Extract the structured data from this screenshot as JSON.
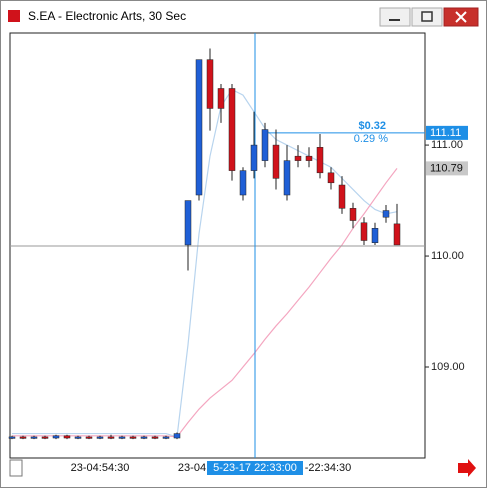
{
  "window": {
    "title": "S.EA - Electronic Arts, 30 Sec"
  },
  "chart_data": {
    "type": "candlestick",
    "ohlc": [
      [
        108.36,
        108.38,
        108.35,
        108.37
      ],
      [
        108.37,
        108.38,
        108.35,
        108.36
      ],
      [
        108.36,
        108.38,
        108.35,
        108.37
      ],
      [
        108.37,
        108.38,
        108.35,
        108.36
      ],
      [
        108.36,
        108.39,
        108.35,
        108.38
      ],
      [
        108.38,
        108.39,
        108.35,
        108.36
      ],
      [
        108.36,
        108.38,
        108.35,
        108.37
      ],
      [
        108.37,
        108.38,
        108.35,
        108.36
      ],
      [
        108.36,
        108.38,
        108.35,
        108.37
      ],
      [
        108.37,
        108.39,
        108.35,
        108.36
      ],
      [
        108.36,
        108.38,
        108.35,
        108.37
      ],
      [
        108.37,
        108.38,
        108.35,
        108.36
      ],
      [
        108.36,
        108.38,
        108.35,
        108.37
      ],
      [
        108.37,
        108.38,
        108.35,
        108.36
      ],
      [
        108.36,
        108.38,
        108.35,
        108.37
      ],
      [
        108.36,
        108.41,
        108.35,
        108.4
      ],
      [
        110.1,
        110.5,
        109.87,
        110.5
      ],
      [
        110.55,
        111.77,
        110.5,
        111.77
      ],
      [
        111.77,
        111.87,
        111.13,
        111.33
      ],
      [
        111.51,
        111.55,
        111.2,
        111.33
      ],
      [
        111.51,
        111.55,
        110.68,
        110.77
      ],
      [
        110.55,
        110.8,
        110.5,
        110.77
      ],
      [
        110.77,
        111.3,
        110.7,
        111.0
      ],
      [
        110.86,
        111.2,
        110.8,
        111.14
      ],
      [
        111.0,
        111.14,
        110.6,
        110.7
      ],
      [
        110.55,
        111.0,
        110.5,
        110.86
      ],
      [
        110.9,
        111.0,
        110.8,
        110.86
      ],
      [
        110.9,
        110.98,
        110.8,
        110.86
      ],
      [
        110.98,
        111.1,
        110.7,
        110.75
      ],
      [
        110.75,
        110.8,
        110.6,
        110.66
      ],
      [
        110.64,
        110.72,
        110.38,
        110.43
      ],
      [
        110.43,
        110.48,
        110.25,
        110.32
      ],
      [
        110.3,
        110.35,
        110.1,
        110.14
      ],
      [
        110.12,
        110.3,
        110.1,
        110.25
      ],
      [
        110.35,
        110.46,
        110.3,
        110.41
      ],
      [
        110.29,
        110.47,
        110.1,
        110.1
      ]
    ],
    "up_color": "#1f5fd6",
    "down_color": "#d0121b",
    "series": [
      {
        "color": "#b8d4ee",
        "values": [
          108.4,
          108.4,
          108.4,
          108.4,
          108.4,
          108.4,
          108.4,
          108.4,
          108.4,
          108.4,
          108.4,
          108.4,
          108.4,
          108.4,
          108.4,
          108.37,
          109.2,
          110.2,
          110.9,
          111.35,
          111.5,
          111.45,
          111.3,
          111.15,
          111.05,
          111.0,
          110.95,
          110.9,
          110.85,
          110.8,
          110.7,
          110.6,
          110.5,
          110.42,
          110.38,
          110.4
        ]
      },
      {
        "color": "#f4a6c0",
        "values": [
          108.38,
          108.38,
          108.38,
          108.38,
          108.38,
          108.38,
          108.38,
          108.38,
          108.38,
          108.38,
          108.38,
          108.38,
          108.38,
          108.38,
          108.38,
          108.37,
          108.5,
          108.62,
          108.72,
          108.8,
          108.88,
          109.0,
          109.12,
          109.25,
          109.37,
          109.48,
          109.6,
          109.72,
          109.85,
          109.98,
          110.1,
          110.25,
          110.38,
          110.52,
          110.66,
          110.79
        ]
      }
    ],
    "ylim": [
      108.18,
      112.01
    ],
    "yticks": [
      {
        "value": 109,
        "label": "109.00"
      },
      {
        "value": 110,
        "label": "110.00"
      },
      {
        "value": 111,
        "label": "111.00"
      }
    ],
    "x_labels": [
      "23-04:54:30",
      "23-04",
      "-22:34:30"
    ],
    "crosshair": {
      "time": "5-23-17 22:33:00",
      "price": 110.09
    },
    "price_tags": [
      {
        "value": 111.11,
        "label": "111.11",
        "color": "#1e8fe6"
      },
      {
        "value": 110.79,
        "label": "110.79",
        "color": "#c8c8c8"
      }
    ],
    "measure": {
      "change": "$0.32",
      "percent": "0.29 %",
      "level": 111.11
    }
  }
}
